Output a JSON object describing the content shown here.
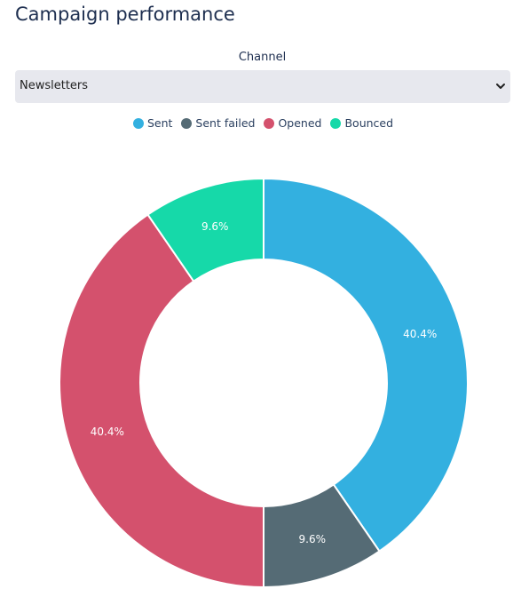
{
  "page": {
    "title": "Campaign performance"
  },
  "filter": {
    "label": "Channel",
    "selected": "Newsletters"
  },
  "chart_data": {
    "type": "pie",
    "hole": true,
    "legend_position": "top-center",
    "categories": [
      "Sent",
      "Sent failed",
      "Opened",
      "Bounced"
    ],
    "values": [
      40.4,
      9.6,
      40.4,
      9.6
    ],
    "labels": [
      "40.4%",
      "9.6%",
      "40.4%",
      "9.6%"
    ],
    "colors": [
      "#33b0e0",
      "#556b75",
      "#d4516d",
      "#16d9a9"
    ]
  },
  "icons": {
    "dropdown": "chevron-down-icon"
  }
}
